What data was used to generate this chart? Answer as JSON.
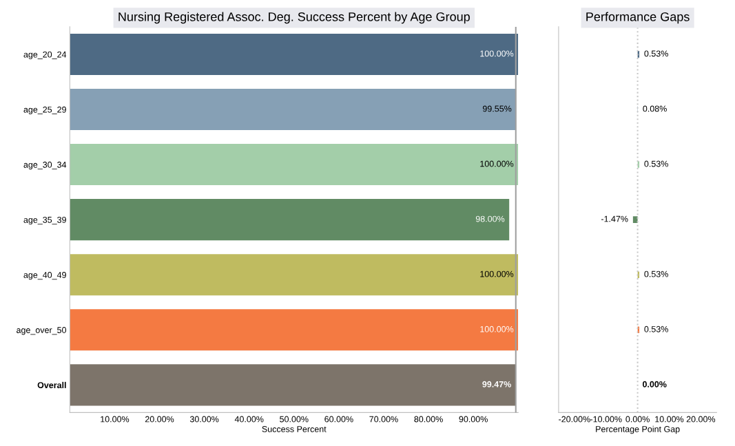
{
  "chart_data": [
    {
      "type": "bar",
      "orientation": "horizontal",
      "title": "Nursing Registered Assoc. Deg. Success Percent by Age Group",
      "xlabel": "Success Percent",
      "categories": [
        "age_20_24",
        "age_25_29",
        "age_30_34",
        "age_35_39",
        "age_40_49",
        "age_over_50",
        "Overall"
      ],
      "values": [
        100.0,
        99.55,
        100.0,
        98.0,
        100.0,
        100.0,
        99.47
      ],
      "colors": [
        "#4e6a84",
        "#86a0b5",
        "#a3cea9",
        "#618b64",
        "#bfbb60",
        "#f47a42",
        "#7d746a"
      ],
      "value_labels": [
        "100.00%",
        "99.55%",
        "100.00%",
        "98.00%",
        "100.00%",
        "100.00%",
        "99.47%"
      ],
      "xlim": [
        0,
        100
      ],
      "xticks": [
        {
          "value": 10,
          "label": "10.00%"
        },
        {
          "value": 20,
          "label": "20.00%"
        },
        {
          "value": 30,
          "label": "30.00%"
        },
        {
          "value": 40,
          "label": "40.00%"
        },
        {
          "value": 50,
          "label": "50.00%"
        },
        {
          "value": 60,
          "label": "60.00%"
        },
        {
          "value": 70,
          "label": "70.00%"
        },
        {
          "value": 80,
          "label": "80.00%"
        },
        {
          "value": 90,
          "label": "90.00%"
        }
      ],
      "ref_lines": [
        {
          "axis": "x",
          "value": 99.47,
          "color": "#a0a0a0",
          "line_style": "solid"
        }
      ]
    },
    {
      "type": "bar",
      "orientation": "horizontal",
      "title": "Performance Gaps",
      "xlabel": "Percentage Point Gap",
      "categories": [
        null,
        null,
        null,
        null,
        null,
        null,
        null
      ],
      "values": [
        0.53,
        0.08,
        0.53,
        -1.47,
        0.53,
        0.53,
        0.0
      ],
      "colors": [
        "#4e6a84",
        "#86a0b5",
        "#a3cea9",
        "#618b64",
        "#bfbb60",
        "#f47a42",
        "#7d746a"
      ],
      "value_labels": [
        "0.53%",
        "0.08%",
        "0.53%",
        "-1.47%",
        "0.53%",
        "0.53%",
        "0.00%"
      ],
      "xlim": [
        -25,
        25
      ],
      "xticks": [
        {
          "value": -20,
          "label": "-20.00%"
        },
        {
          "value": -10,
          "label": "-10.00%"
        },
        {
          "value": 0,
          "label": "0.00%"
        },
        {
          "value": 10,
          "label": "10.00%"
        },
        {
          "value": 20,
          "label": "20.00%"
        }
      ],
      "ref_lines": [
        {
          "axis": "x",
          "value": 0,
          "color": "#c8c8c8",
          "line_style": "dotted"
        }
      ]
    }
  ]
}
